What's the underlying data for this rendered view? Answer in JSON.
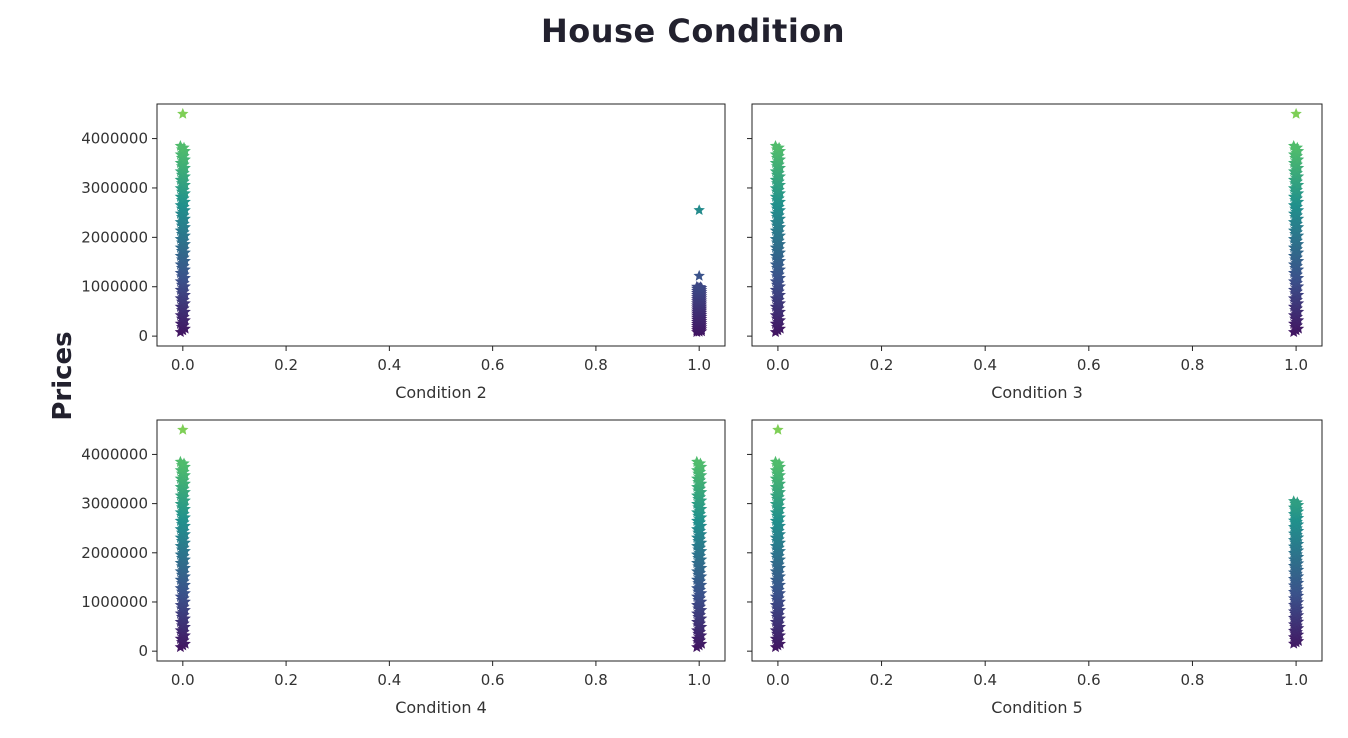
{
  "title": "House Condition",
  "ylabel": "Prices",
  "chart_data": {
    "type": "scatter",
    "title": "House Condition",
    "ylabel": "Prices",
    "marker": "star",
    "colormap": "viridis",
    "sharey": true,
    "ylim": [
      -200000,
      4700000
    ],
    "xlim": [
      -0.05,
      1.05
    ],
    "xticks": [
      "0.0",
      "0.2",
      "0.4",
      "0.6",
      "0.8",
      "1.0"
    ],
    "yticks": [
      "0",
      "1000000",
      "2000000",
      "3000000",
      "4000000"
    ],
    "panels": [
      {
        "xlabel": "Condition 2",
        "series": [
          {
            "x": 0,
            "ymin": 80000,
            "ymax": 3850000,
            "outliers": [
              4500000
            ]
          },
          {
            "x": 1,
            "ymin": 80000,
            "ymax": 1000000,
            "outliers": [
              1220000,
              2550000
            ]
          }
        ]
      },
      {
        "xlabel": "Condition 3",
        "series": [
          {
            "x": 0,
            "ymin": 80000,
            "ymax": 3850000,
            "outliers": []
          },
          {
            "x": 1,
            "ymin": 80000,
            "ymax": 3850000,
            "outliers": [
              4500000
            ]
          }
        ]
      },
      {
        "xlabel": "Condition 4",
        "series": [
          {
            "x": 0,
            "ymin": 80000,
            "ymax": 3850000,
            "outliers": [
              4500000
            ]
          },
          {
            "x": 1,
            "ymin": 80000,
            "ymax": 3850000,
            "outliers": []
          }
        ]
      },
      {
        "xlabel": "Condition 5",
        "series": [
          {
            "x": 0,
            "ymin": 80000,
            "ymax": 3850000,
            "outliers": [
              4500000
            ]
          },
          {
            "x": 1,
            "ymin": 150000,
            "ymax": 3050000,
            "outliers": []
          }
        ]
      }
    ]
  }
}
